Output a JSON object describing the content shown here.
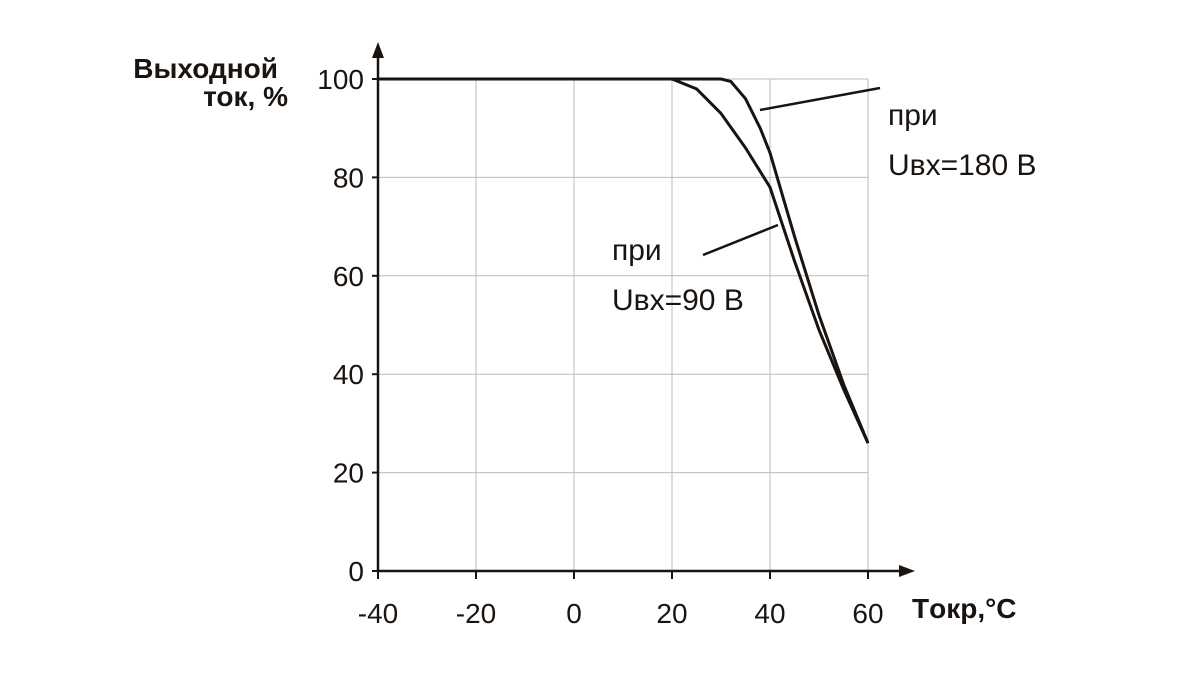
{
  "chart_data": {
    "type": "line",
    "ylabel": [
      "Выходной",
      "ток, %"
    ],
    "xlabel": "Tокр,°C",
    "xlim": [
      -40,
      60
    ],
    "xticks": [
      -40,
      -20,
      0,
      20,
      40,
      60
    ],
    "ylim": [
      0,
      100
    ],
    "yticks": [
      0,
      20,
      40,
      60,
      80,
      100
    ],
    "grid": true,
    "series": [
      {
        "name": "Uвх=180 В",
        "prefix": "при",
        "color": "#1a1410",
        "x": [
          -40,
          30,
          32,
          35,
          38,
          40,
          45,
          50,
          55,
          60
        ],
        "values": [
          100,
          100,
          99.5,
          96,
          90,
          85,
          68,
          52,
          38,
          26
        ]
      },
      {
        "name": "Uвх=90 В",
        "prefix": "при",
        "color": "#1a1410",
        "x": [
          -40,
          20,
          25,
          30,
          35,
          40,
          45,
          50,
          55,
          60
        ],
        "values": [
          100,
          100,
          98,
          93,
          86,
          78,
          63,
          49,
          37,
          26
        ]
      }
    ]
  }
}
